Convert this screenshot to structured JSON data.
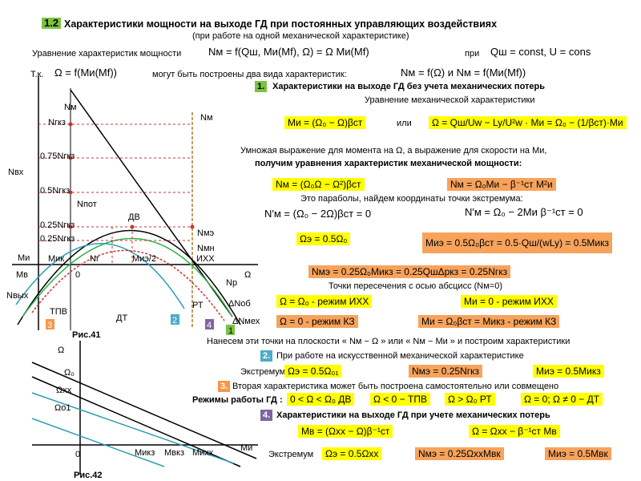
{
  "header": {
    "number": "1.2",
    "title": "Характеристики мощности на выходе ГД при постоянных управляющих воздействиях",
    "subtitle": "(при работе на одной механической характеристике)"
  },
  "intro": {
    "power_eq_label": "Уравнение характеристик мощности",
    "power_eq": "Nм = f(Qш, Mи(Mf), Ω) = Ω Mи(Mf)",
    "when": "при",
    "condition": "Qш = const, U = cons",
    "since": "Т.к.",
    "speed_eq": "Ω = f(Mи(Mf))",
    "two_kinds": "могут быть построены два вида характеристик:",
    "kinds_eq": "Nм = f(Ω)  и  Nм = f(Mи(Mf))"
  },
  "section1": {
    "number": "1.",
    "title": "Характеристики на выходе ГД без учета механических потерь",
    "mech_label": "Уравнение механической характеристики",
    "mech_eq1": "Mи = (Ω₀ − Ω)βст",
    "or": "или",
    "mech_eq2": "Ω = Qш/Uw − Ly/U²w · Mи = Ω₀ − (1/βст)·Mи",
    "multiply_text": "Умножая выражение для момента на Ω, а выражение для скорости на Mи,",
    "obtain_text": "получим уравнения характеристик механической мощности:",
    "power_eq1": "Nм = (Ω₀Ω − Ω²)βст",
    "power_eq2": "Nм = Ω₀Mи − β⁻¹ст M²и",
    "parabola_text": "Это параболы, найдем координаты точки экстремума:",
    "deriv1": "N'м = (Ω₀ − 2Ω)βст = 0",
    "deriv2": "N'м = Ω₀ − 2Mи β⁻¹ст = 0",
    "extremum_omega": "Ωэ = 0.5Ω₀",
    "extremum_moment": "Mиэ = 0.5Ω₀βст = 0.5·Qш/(wLy) = 0.5Mикз",
    "extremum_power": "Nмэ = 0.25Ω₀Mикз = 0.25QшΔpкз = 0.25Nгкз",
    "intersect_text": "Точки пересечения с осью абсцисс (Nм=0)",
    "idle_omega": "Ω = Ω₀ - режим ИХХ",
    "idle_moment": "Mи = 0 - режим ИХХ",
    "short_omega": "Ω = 0 - режим КЗ",
    "short_moment": "Mи = Ω₀βст = Mикз - режим КЗ",
    "plot_text": "Нанесем эти точки на плоскости « Nм − Ω » или « Nм − Mи » и построим характеристики"
  },
  "section2": {
    "number": "2.",
    "title": "При работе на искусственной механической характеристике",
    "extremum": "Экстремум",
    "omega": "Ωэ = 0.5Ω₀₁",
    "power": "Nмэ = 0.25Nгкз",
    "moment": "Mиэ = 0.5Mикз"
  },
  "section3": {
    "number": "3.",
    "title": "Вторая характеристика может быть построена самостоятельно или совмещено",
    "modes_label": "Режимы работы ГД :",
    "mode1": "0 < Ω < Ω₀  ДВ",
    "mode2": "Ω < 0 − ТПВ",
    "mode3": "Ω > Ω₀  РТ",
    "mode4": "Ω = 0; Ω ≠ 0 − ДТ"
  },
  "section4": {
    "number": "4.",
    "title": "Характеристики на выходе ГД при учете механических потерь",
    "eq1": "Mв = (Ωхх − Ω)β⁻¹ст",
    "eq2": "Ω = Ωхх − β⁻¹ст Mв",
    "extremum": "Экстремум",
    "omega": "Ωэ = 0.5Ωхх",
    "power": "Nмэ = 0.25ΩххMвк",
    "moment": "Mиэ = 0.5Mвк"
  },
  "figure41": {
    "caption": "Рис.41",
    "labels": [
      "Nм",
      "Nгкз",
      "Nм",
      "0.75Nгкз",
      "Nвх",
      "0.5Nгкз",
      "Nпот",
      "0.25Nгкз",
      "0.25Nгкз",
      "ДВ",
      "Nмэ",
      "Nмн",
      "Mи",
      "Mик",
      "Nг",
      "Mиэ/2",
      "ИХХ",
      "Mв",
      "0",
      "Ω",
      "Nр",
      "Nвых",
      "ТПВ",
      "ДТ",
      "РТ",
      "ΔNоб",
      "ΔNмех",
      "3",
      "2",
      "4",
      "1"
    ]
  },
  "figure42": {
    "caption": "Рис.42",
    "labels": [
      "Ω",
      "Ω₀",
      "Ωхх",
      "Ωо1",
      "0",
      "Mикз",
      "Mвкз",
      "Mиxx",
      "Mи"
    ]
  }
}
